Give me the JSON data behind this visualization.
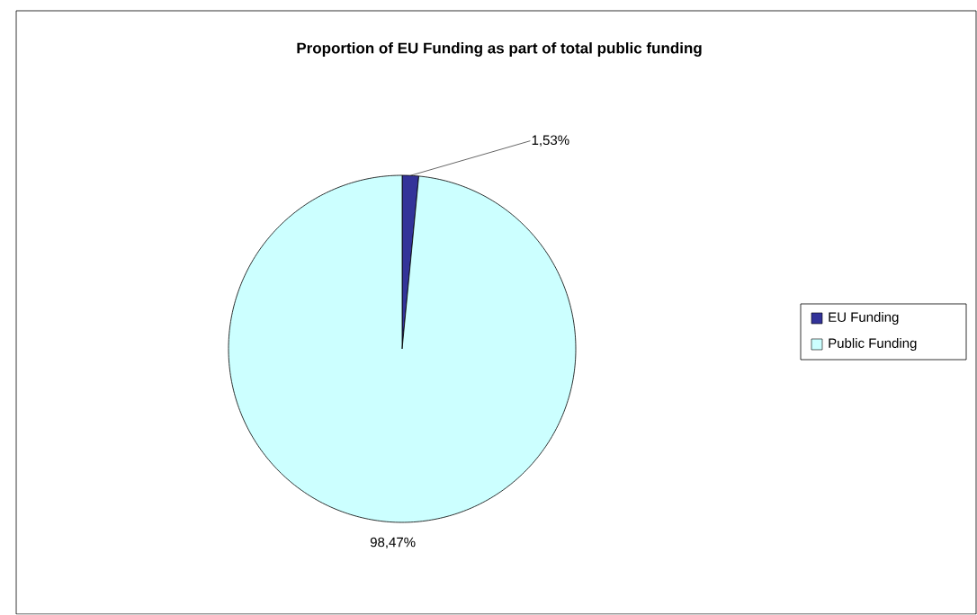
{
  "chart_data": {
    "type": "pie",
    "title": "Proportion of EU Funding as part of total public funding",
    "categories": [
      "EU Funding",
      "Public Funding"
    ],
    "values": [
      1.53,
      98.47
    ],
    "colors": [
      "#333399",
      "#ccffff"
    ],
    "value_labels": [
      "1,53%",
      "98,47%"
    ],
    "legend": "right"
  }
}
